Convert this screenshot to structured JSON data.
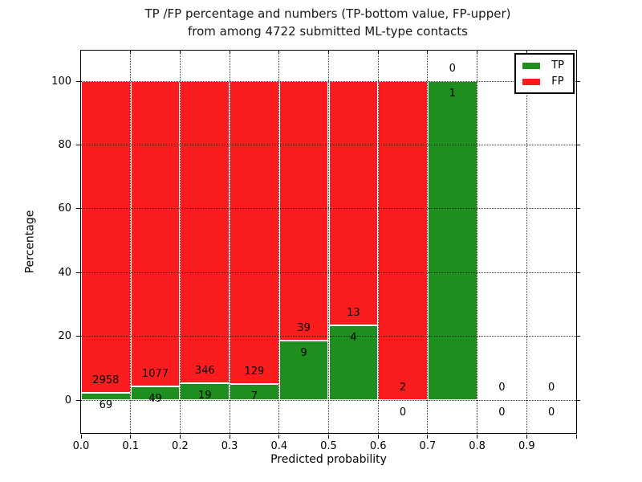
{
  "figure": {
    "title_line1": "TP /FP percentage and numbers (TP-bottom value, FP-upper)",
    "title_line2": "from among 4722 submitted ML-type contacts"
  },
  "chart_data": {
    "type": "bar",
    "stacked": true,
    "normalized_to_percent": true,
    "title": "TP /FP percentage and numbers (TP-bottom value, FP-upper)\nfrom among 4722 submitted ML-type contacts",
    "total_contacts": 4722,
    "xlabel": "Predicted probability",
    "ylabel": "Percentage",
    "categories": [
      "0.0-0.1",
      "0.1-0.2",
      "0.2-0.3",
      "0.3-0.4",
      "0.4-0.5",
      "0.5-0.6",
      "0.6-0.7",
      "0.7-0.8",
      "0.8-0.9",
      "0.9-1.0"
    ],
    "series": [
      {
        "name": "TP",
        "color": "#1e8e1e",
        "values": [
          69,
          49,
          19,
          7,
          9,
          4,
          0,
          1,
          0,
          0
        ]
      },
      {
        "name": "FP",
        "color": "#fb1d1d",
        "values": [
          2958,
          1077,
          346,
          129,
          39,
          13,
          2,
          0,
          0,
          0
        ]
      }
    ],
    "tp_percent_by_bin": [
      2.28,
      4.35,
      5.21,
      5.15,
      18.75,
      23.53,
      0.0,
      100.0,
      null,
      null
    ],
    "x_tick_labels": [
      "0.0",
      "0.1",
      "0.2",
      "0.3",
      "0.4",
      "0.5",
      "0.6",
      "0.7",
      "0.8",
      "0.9"
    ],
    "y_tick_values": [
      0,
      20,
      40,
      60,
      80,
      100
    ],
    "y_tick_labels": [
      "0",
      "20",
      "40",
      "60",
      "80",
      "100"
    ],
    "xlim": [
      0.0,
      1.0
    ],
    "ylim": [
      -10.3,
      109.7
    ],
    "grid": "dotted",
    "bar_edge_color": "#ffffff",
    "legend": {
      "position": "upper right",
      "entries": [
        {
          "label": "TP",
          "color": "#1e8e1e"
        },
        {
          "label": "FP",
          "color": "#fb1d1d"
        }
      ]
    }
  }
}
